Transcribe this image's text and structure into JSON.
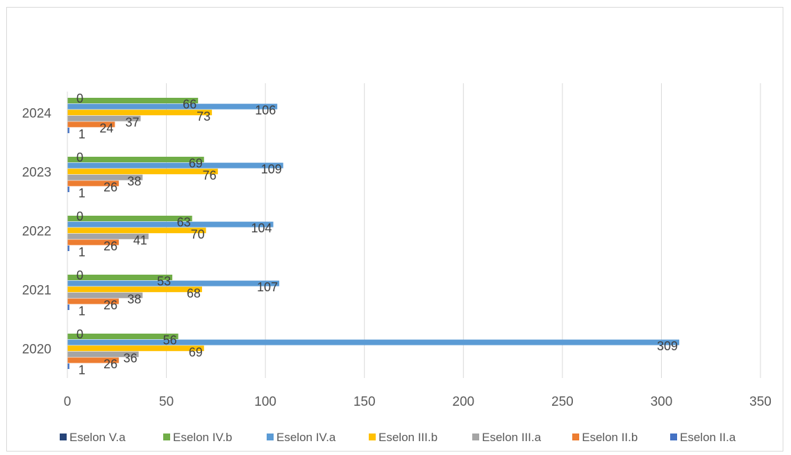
{
  "chart_data": {
    "type": "bar",
    "orientation": "horizontal",
    "title": "",
    "xlabel": "",
    "ylabel": "",
    "xlim": [
      0,
      350
    ],
    "x_ticks": [
      0,
      50,
      100,
      150,
      200,
      250,
      300,
      350
    ],
    "grid": true,
    "legend_position": "bottom",
    "categories": [
      "2020",
      "2021",
      "2022",
      "2023",
      "2024"
    ],
    "series": [
      {
        "name": "Eselon II.a",
        "color": "#4472c4",
        "values": [
          1,
          1,
          1,
          1,
          1
        ]
      },
      {
        "name": "Eselon II.b",
        "color": "#ed7d31",
        "values": [
          26,
          26,
          26,
          26,
          24
        ]
      },
      {
        "name": "Eselon III.a",
        "color": "#a5a5a5",
        "values": [
          36,
          38,
          41,
          38,
          37
        ]
      },
      {
        "name": "Eselon III.b",
        "color": "#ffc000",
        "values": [
          69,
          68,
          70,
          76,
          73
        ]
      },
      {
        "name": "Eselon IV.a",
        "color": "#5b9bd5",
        "values": [
          309,
          107,
          104,
          109,
          106
        ]
      },
      {
        "name": "Eselon IV.b",
        "color": "#70ad47",
        "values": [
          56,
          53,
          63,
          69,
          66
        ]
      },
      {
        "name": "Eselon V.a",
        "color": "#264478",
        "values": [
          0,
          0,
          0,
          0,
          0
        ]
      }
    ],
    "legend_order": [
      "Eselon V.a",
      "Eselon IV.b",
      "Eselon IV.a",
      "Eselon III.b",
      "Eselon III.a",
      "Eselon II.b",
      "Eselon II.a"
    ]
  }
}
